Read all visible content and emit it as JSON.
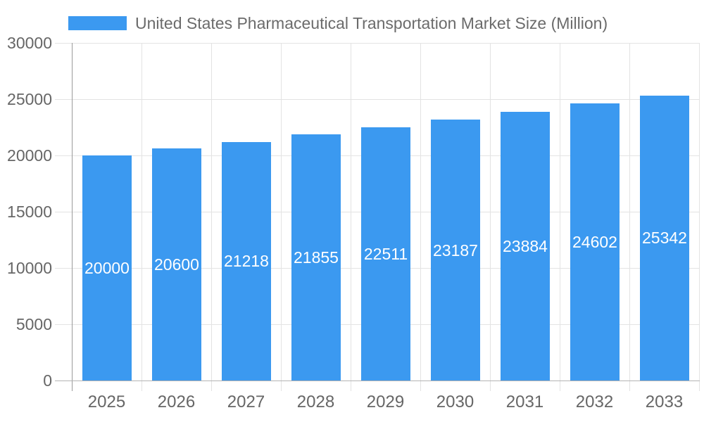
{
  "legend": {
    "label": "United States Pharmaceutical Transportation Market Size (Million)"
  },
  "chart_data": {
    "type": "bar",
    "title": "United States Pharmaceutical Transportation Market Size (Million)",
    "xlabel": "",
    "ylabel": "",
    "categories": [
      "2025",
      "2026",
      "2027",
      "2028",
      "2029",
      "2030",
      "2031",
      "2032",
      "2033"
    ],
    "values": [
      20000,
      20600,
      21218,
      21855,
      22511,
      23187,
      23884,
      24602,
      25342
    ],
    "ylim": [
      0,
      30000
    ],
    "yticks": [
      0,
      5000,
      10000,
      15000,
      20000,
      25000,
      30000
    ],
    "grid": true,
    "legend_position": "top-left",
    "bar_color": "#3B99F0",
    "bar_label_color": "#ffffff",
    "axis_text_color": "#666666",
    "grid_color": "#e3e3e3",
    "y_axis_line_color": "#9a9a9a",
    "x_axis_line_color": "#b3b3b3"
  }
}
